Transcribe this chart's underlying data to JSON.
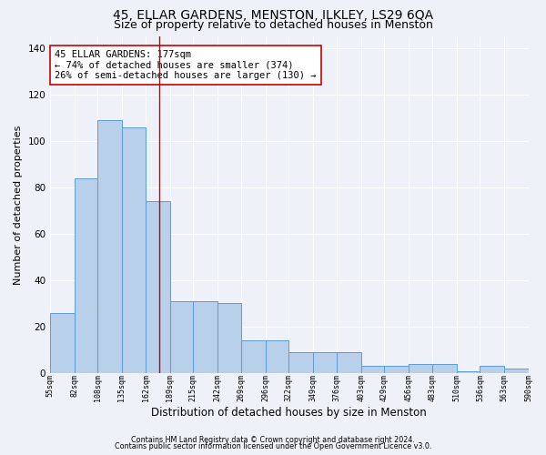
{
  "title": "45, ELLAR GARDENS, MENSTON, ILKLEY, LS29 6QA",
  "subtitle": "Size of property relative to detached houses in Menston",
  "xlabel": "Distribution of detached houses by size in Menston",
  "ylabel": "Number of detached properties",
  "footer_line1": "Contains HM Land Registry data © Crown copyright and database right 2024.",
  "footer_line2": "Contains public sector information licensed under the Open Government Licence v3.0.",
  "annotation_line1": "45 ELLAR GARDENS: 177sqm",
  "annotation_line2": "← 74% of detached houses are smaller (374)",
  "annotation_line3": "26% of semi-detached houses are larger (130) →",
  "bar_left_edges": [
    55,
    82,
    108,
    135,
    162,
    189,
    215,
    242,
    269,
    296,
    322,
    349,
    376,
    403,
    429,
    456,
    483,
    510,
    536,
    563
  ],
  "bar_widths": [
    27,
    26,
    27,
    27,
    27,
    26,
    27,
    27,
    27,
    26,
    27,
    27,
    27,
    26,
    27,
    27,
    27,
    26,
    27,
    27
  ],
  "bar_heights": [
    26,
    84,
    109,
    106,
    74,
    31,
    31,
    30,
    14,
    14,
    9,
    9,
    9,
    3,
    3,
    4,
    4,
    1,
    3,
    2
  ],
  "tick_labels": [
    "55sqm",
    "82sqm",
    "108sqm",
    "135sqm",
    "162sqm",
    "189sqm",
    "215sqm",
    "242sqm",
    "269sqm",
    "296sqm",
    "322sqm",
    "349sqm",
    "376sqm",
    "403sqm",
    "429sqm",
    "456sqm",
    "483sqm",
    "510sqm",
    "536sqm",
    "563sqm",
    "590sqm"
  ],
  "bar_color": "#b8d0ea",
  "bar_edge_color": "#5b9bd5",
  "vline_x": 177,
  "vline_color": "#cc0000",
  "ylim": [
    0,
    145
  ],
  "yticks": [
    0,
    20,
    40,
    60,
    80,
    100,
    120,
    140
  ],
  "background_color": "#eef2f8",
  "grid_color": "#ffffff",
  "title_fontsize": 10,
  "subtitle_fontsize": 9,
  "xlabel_fontsize": 8.5,
  "ylabel_fontsize": 8,
  "annotation_fontsize": 7.5,
  "annotation_box_color": "#ffffff",
  "annotation_box_edge": "#cc0000"
}
